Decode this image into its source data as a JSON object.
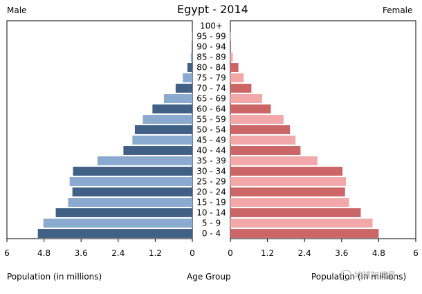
{
  "chart_data": {
    "type": "bar",
    "title": "Egypt - 2014",
    "left_label": "Male",
    "right_label": "Female",
    "xlabel": "Population (in millions)",
    "center_label": "Age Group",
    "right_xlabel": "Population (in millions)",
    "xlim": [
      0,
      6
    ],
    "x_ticks": [
      "6",
      "4.8",
      "3.6",
      "2.4",
      "1.2",
      "0"
    ],
    "x_ticks_right": [
      "0",
      "1.2",
      "2.4",
      "3.6",
      "4.8",
      "6"
    ],
    "categories": [
      "0 - 4",
      "5 - 9",
      "10 - 14",
      "15 - 19",
      "20 - 24",
      "25 - 29",
      "30 - 34",
      "35 - 39",
      "40 - 44",
      "45 - 49",
      "50 - 54",
      "55 - 59",
      "60 - 64",
      "65 - 69",
      "70 - 74",
      "75 - 79",
      "80 - 84",
      "85 - 89",
      "90 - 94",
      "95 - 99",
      "100+"
    ],
    "series": [
      {
        "name": "Male",
        "values": [
          5.0,
          4.82,
          4.42,
          4.02,
          3.88,
          3.97,
          3.86,
          3.07,
          2.23,
          1.94,
          1.86,
          1.6,
          1.29,
          0.92,
          0.54,
          0.31,
          0.16,
          0.05,
          0.02,
          0.01,
          0.0
        ],
        "colors": [
          "#416085",
          "#8aaad0"
        ]
      },
      {
        "name": "Female",
        "values": [
          4.8,
          4.6,
          4.22,
          3.84,
          3.71,
          3.74,
          3.63,
          2.82,
          2.27,
          2.11,
          1.93,
          1.72,
          1.31,
          1.03,
          0.68,
          0.43,
          0.26,
          0.08,
          0.02,
          0.01,
          0.0
        ],
        "colors": [
          "#cc6666",
          "#f2a8a8"
        ]
      }
    ],
    "grid": false,
    "legend": "none"
  },
  "watermark": {
    "text": "地球知识局",
    "icon": "wechat-logo"
  }
}
